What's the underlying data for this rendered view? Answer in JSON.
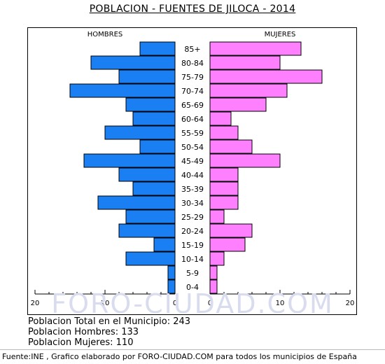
{
  "title": "POBLACION - FUENTES DE JILOCA - 2014",
  "watermark": "FORO-CIUDAD.COM",
  "stats": {
    "total": "Poblacion Total en el Municipio: 243",
    "hombres": "Poblacion Hombres: 133",
    "mujeres": "Poblacion Mujeres: 110"
  },
  "footer": "Fuente:INE , Grafico elaborado por FORO-CIUDAD.COM para todos los municipios de España",
  "colors": {
    "men": "#1a7ff2",
    "women": "#ff80ff"
  },
  "chart_data": {
    "type": "bar",
    "orientation": "horizontal-pyramid",
    "categories": [
      "85+",
      "80-84",
      "75-79",
      "70-74",
      "65-69",
      "60-64",
      "55-59",
      "50-54",
      "45-49",
      "40-44",
      "35-39",
      "30-34",
      "25-29",
      "20-24",
      "15-19",
      "10-14",
      "5-9",
      "0-4"
    ],
    "series": [
      {
        "name": "HOMBRES",
        "values": [
          5,
          12,
          8,
          15,
          7,
          6,
          10,
          5,
          13,
          8,
          6,
          11,
          7,
          8,
          3,
          7,
          1,
          1
        ]
      },
      {
        "name": "MUJERES",
        "values": [
          13,
          10,
          16,
          11,
          8,
          3,
          4,
          6,
          10,
          4,
          4,
          4,
          2,
          6,
          5,
          2,
          1,
          1
        ]
      }
    ],
    "x_ticks_left": [
      "20",
      "10",
      "0"
    ],
    "x_ticks_right": [
      "0",
      "10",
      "20"
    ],
    "xlim": [
      0,
      20
    ]
  }
}
